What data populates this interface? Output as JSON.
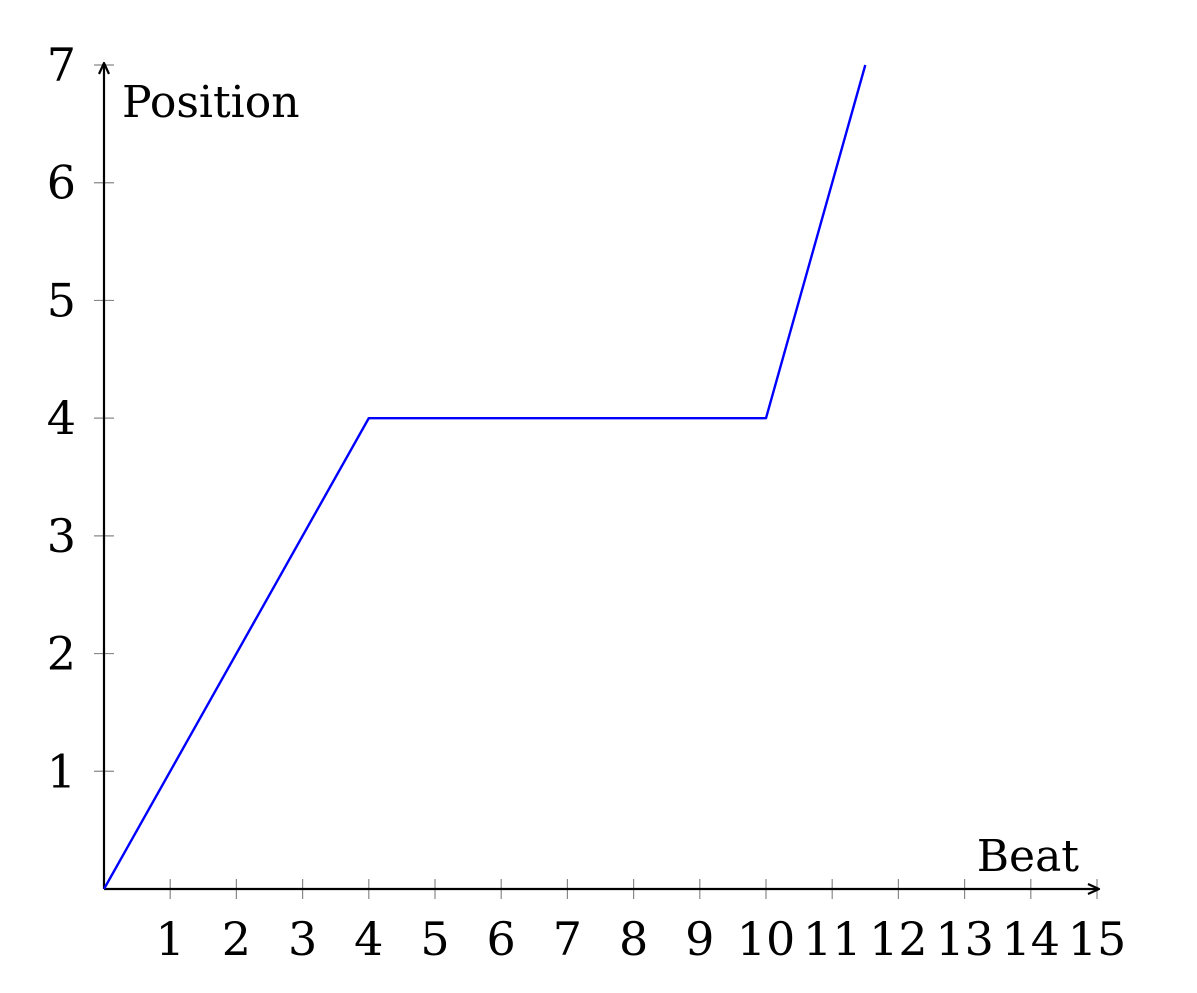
{
  "chart_data": {
    "type": "line",
    "title": "",
    "xlabel": "Beat",
    "ylabel": "Position",
    "xlim": [
      0,
      15
    ],
    "ylim": [
      0,
      7
    ],
    "x_ticks": [
      1,
      2,
      3,
      4,
      5,
      6,
      7,
      8,
      9,
      10,
      11,
      12,
      13,
      14,
      15
    ],
    "y_ticks": [
      1,
      2,
      3,
      4,
      5,
      6,
      7
    ],
    "grid": false,
    "legend": "none",
    "series": [
      {
        "color": "#0000ff",
        "x": [
          0,
          4,
          10,
          11.5
        ],
        "y": [
          0,
          4,
          4,
          7
        ]
      }
    ]
  }
}
